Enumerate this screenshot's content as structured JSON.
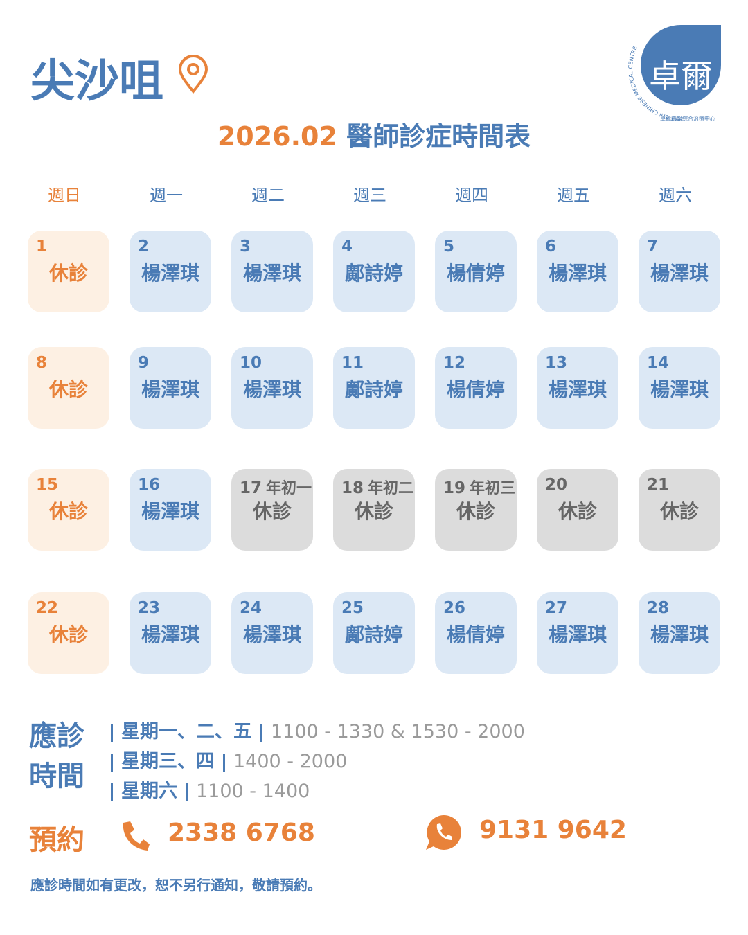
{
  "header": {
    "location": "尖沙咀",
    "title_month": "2026.02",
    "title_text": "醫師診症時間表"
  },
  "logo": {
    "mark": "卓爾",
    "name_en": "YAT CHI CHINESE MEDICAL CENTRE",
    "name_zh": "卓爾中醫綜合治療中心"
  },
  "weekdays": [
    {
      "label": "週日",
      "color": "#e8823a"
    },
    {
      "label": "週一",
      "color": "#4a7bb5"
    },
    {
      "label": "週二",
      "color": "#4a7bb5"
    },
    {
      "label": "週三",
      "color": "#4a7bb5"
    },
    {
      "label": "週四",
      "color": "#4a7bb5"
    },
    {
      "label": "週五",
      "color": "#4a7bb5"
    },
    {
      "label": "週六",
      "color": "#4a7bb5"
    }
  ],
  "calendar": [
    [
      {
        "day": 1,
        "doctor": "休診",
        "fill": "#fdf0e3",
        "ink": "#e8823a"
      },
      {
        "day": 2,
        "doctor": "楊澤琪",
        "fill": "#dce8f5",
        "ink": "#4a7bb5"
      },
      {
        "day": 3,
        "doctor": "楊澤琪",
        "fill": "#dce8f5",
        "ink": "#4a7bb5"
      },
      {
        "day": 4,
        "doctor": "鄺詩婷",
        "fill": "#dce8f5",
        "ink": "#4a7bb5"
      },
      {
        "day": 5,
        "doctor": "楊倩婷",
        "fill": "#dce8f5",
        "ink": "#4a7bb5"
      },
      {
        "day": 6,
        "doctor": "楊澤琪",
        "fill": "#dce8f5",
        "ink": "#4a7bb5"
      },
      {
        "day": 7,
        "doctor": "楊澤琪",
        "fill": "#dce8f5",
        "ink": "#4a7bb5"
      }
    ],
    [
      {
        "day": 8,
        "doctor": "休診",
        "fill": "#fdf0e3",
        "ink": "#e8823a"
      },
      {
        "day": 9,
        "doctor": "楊澤琪",
        "fill": "#dce8f5",
        "ink": "#4a7bb5"
      },
      {
        "day": 10,
        "doctor": "楊澤琪",
        "fill": "#dce8f5",
        "ink": "#4a7bb5"
      },
      {
        "day": 11,
        "doctor": "鄺詩婷",
        "fill": "#dce8f5",
        "ink": "#4a7bb5"
      },
      {
        "day": 12,
        "doctor": "楊倩婷",
        "fill": "#dce8f5",
        "ink": "#4a7bb5"
      },
      {
        "day": 13,
        "doctor": "楊澤琪",
        "fill": "#dce8f5",
        "ink": "#4a7bb5"
      },
      {
        "day": 14,
        "doctor": "楊澤琪",
        "fill": "#dce8f5",
        "ink": "#4a7bb5"
      }
    ],
    [
      {
        "day": 15,
        "doctor": "休診",
        "fill": "#fdf0e3",
        "ink": "#e8823a"
      },
      {
        "day": 16,
        "doctor": "楊澤琪",
        "fill": "#dce8f5",
        "ink": "#4a7bb5"
      },
      {
        "day": 17,
        "note": "年初一",
        "doctor": "休診",
        "fill": "#dcdcdc",
        "ink": "#666666"
      },
      {
        "day": 18,
        "note": "年初二",
        "doctor": "休診",
        "fill": "#dcdcdc",
        "ink": "#666666"
      },
      {
        "day": 19,
        "note": "年初三",
        "doctor": "休診",
        "fill": "#dcdcdc",
        "ink": "#666666"
      },
      {
        "day": 20,
        "doctor": "休診",
        "fill": "#dcdcdc",
        "ink": "#666666"
      },
      {
        "day": 21,
        "doctor": "休診",
        "fill": "#dcdcdc",
        "ink": "#666666"
      }
    ],
    [
      {
        "day": 22,
        "doctor": "休診",
        "fill": "#fdf0e3",
        "ink": "#e8823a"
      },
      {
        "day": 23,
        "doctor": "楊澤琪",
        "fill": "#dce8f5",
        "ink": "#4a7bb5"
      },
      {
        "day": 24,
        "doctor": "楊澤琪",
        "fill": "#dce8f5",
        "ink": "#4a7bb5"
      },
      {
        "day": 25,
        "doctor": "鄺詩婷",
        "fill": "#dce8f5",
        "ink": "#4a7bb5"
      },
      {
        "day": 26,
        "doctor": "楊倩婷",
        "fill": "#dce8f5",
        "ink": "#4a7bb5"
      },
      {
        "day": 27,
        "doctor": "楊澤琪",
        "fill": "#dce8f5",
        "ink": "#4a7bb5"
      },
      {
        "day": 28,
        "doctor": "楊澤琪",
        "fill": "#dce8f5",
        "ink": "#4a7bb5"
      }
    ]
  ],
  "hours": {
    "label": [
      "應診",
      "時間"
    ],
    "rows": [
      {
        "days": "星期一、二、五",
        "time": "1100 - 1330 & 1530 - 2000"
      },
      {
        "days": "星期三、四",
        "time": "1400 - 2000"
      },
      {
        "days": "星期六",
        "time": "1100 - 1400"
      }
    ]
  },
  "booking": {
    "label": "預約",
    "phone": "2338 6768",
    "whatsapp": "9131 9642"
  },
  "footer": {
    "note": "應診時間如有更改，恕不另行通知，敬請預約。"
  }
}
